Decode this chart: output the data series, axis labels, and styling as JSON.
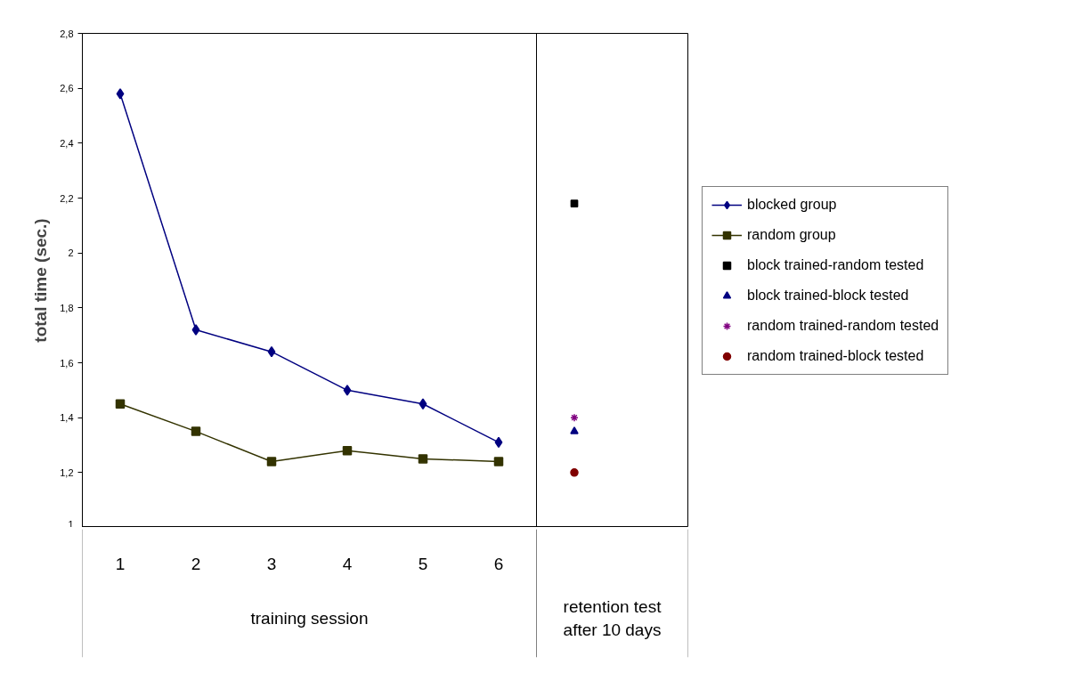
{
  "chart_data": {
    "type": "line",
    "ylabel": "total time (sec.)",
    "xlabel": "training session",
    "annotations": [
      "retention test after 10 days"
    ],
    "categories": [
      "1",
      "2",
      "3",
      "4",
      "5",
      "6",
      null
    ],
    "ylim": [
      1,
      2.8
    ],
    "yticks": [
      1,
      {
        "value": 1.2,
        "label": "1,2"
      },
      {
        "value": 1.4,
        "label": "1,4"
      },
      {
        "value": 1.6,
        "label": "1,6"
      },
      {
        "value": 1.8,
        "label": "1,8"
      },
      2,
      {
        "value": 2.2,
        "label": "2,2"
      },
      {
        "value": 2.4,
        "label": "2,4"
      },
      {
        "value": 2.6,
        "label": "2,6"
      },
      {
        "value": 2.8,
        "label": "2,8"
      }
    ],
    "grid": false,
    "legend": "right",
    "series": [
      {
        "name": "blocked group",
        "marker": "diamond",
        "color": "#000080",
        "values": [
          2.58,
          1.72,
          1.64,
          1.5,
          1.45,
          1.31,
          null
        ]
      },
      {
        "name": "random group",
        "marker": "square",
        "color": "#333300",
        "values": [
          1.45,
          1.35,
          1.24,
          1.28,
          1.25,
          1.24,
          null
        ]
      },
      {
        "name": "block trained-random tested",
        "type": "scatter",
        "marker": "square",
        "color": "#000000",
        "values": [
          null,
          null,
          null,
          null,
          null,
          null,
          2.18
        ]
      },
      {
        "name": "block trained-block tested",
        "type": "scatter",
        "marker": "triangle",
        "color": "#000080",
        "values": [
          null,
          null,
          null,
          null,
          null,
          null,
          1.35
        ]
      },
      {
        "name": "random trained-random tested",
        "type": "scatter",
        "marker": "cross",
        "color": "#800080",
        "values": [
          null,
          null,
          null,
          null,
          null,
          null,
          1.4
        ]
      },
      {
        "name": "random trained-block tested",
        "type": "scatter",
        "marker": "circle",
        "color": "#800000",
        "values": [
          null,
          null,
          null,
          null,
          null,
          null,
          1.2
        ]
      }
    ]
  }
}
